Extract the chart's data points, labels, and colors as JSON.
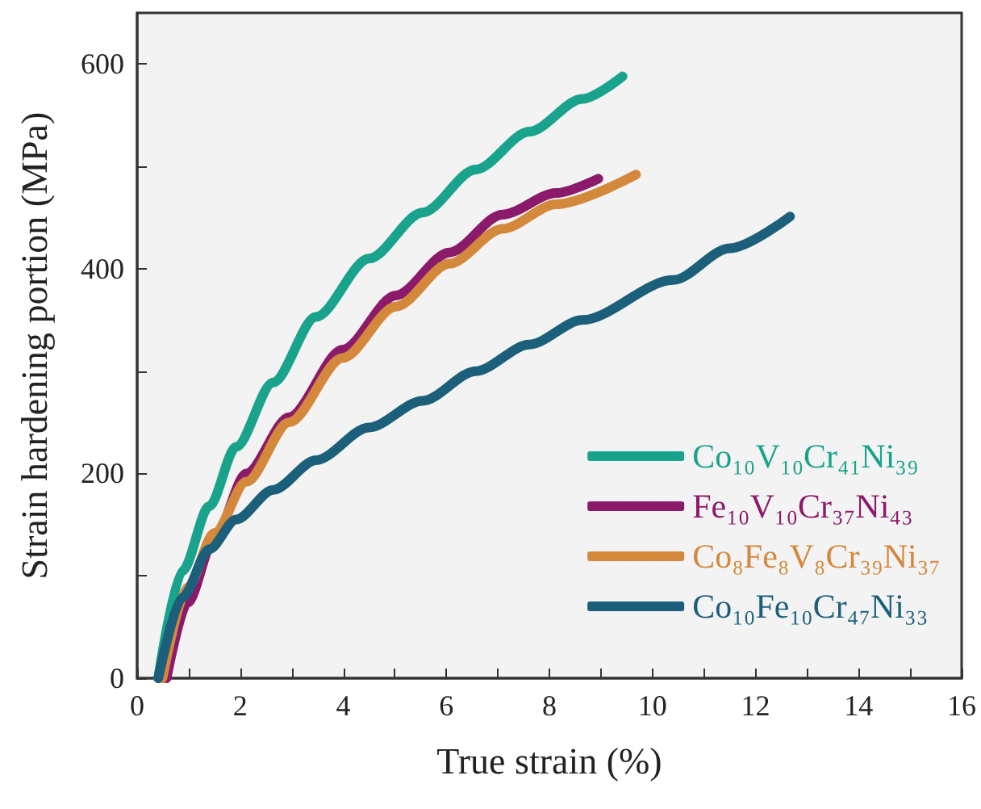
{
  "chart_data": {
    "type": "line",
    "xlabel": "True strain (%)",
    "ylabel": "Strain hardening portion (MPa)",
    "xlim": [
      0,
      16
    ],
    "xticks": [
      0,
      {
        "value": 1,
        "label": null
      },
      2,
      {
        "value": 3,
        "label": null
      },
      4,
      {
        "value": 5,
        "label": null
      },
      6,
      {
        "value": 7,
        "label": null
      },
      8,
      {
        "value": 9,
        "label": null
      },
      10,
      {
        "value": 11,
        "label": null
      },
      12,
      {
        "value": 13,
        "label": null
      },
      14,
      {
        "value": 15,
        "label": null
      },
      16
    ],
    "ylim": [
      0,
      650
    ],
    "yticks": [
      0,
      {
        "value": 100,
        "label": null
      },
      200,
      {
        "value": 300,
        "label": null
      },
      400,
      {
        "value": 500,
        "label": null
      },
      600
    ],
    "grid": false,
    "legend": "bottom right",
    "marker": "none",
    "line_style": "solid",
    "series": [
      {
        "name": "Co₁₀V₁₀Cr₄₁Ni₃₉",
        "color": "#1aa38c",
        "x": [
          0.41,
          0.88,
          1.4,
          1.92,
          2.64,
          3.47,
          4.5,
          5.54,
          6.57,
          7.61,
          8.64,
          9.42
        ],
        "values": [
          0,
          105,
          168,
          226,
          289,
          353,
          410,
          455,
          497,
          534,
          566,
          588
        ]
      },
      {
        "name": "Fe₁₀V₁₀Cr₃₇Ni₄₃",
        "color": "#8b1a6b",
        "x": [
          0.57,
          0.98,
          1.5,
          2.12,
          2.95,
          3.99,
          5.02,
          6.06,
          7.09,
          8.13,
          8.95
        ],
        "values": [
          0,
          74,
          137,
          200,
          255,
          321,
          374,
          416,
          453,
          474,
          488
        ]
      },
      {
        "name": "Co₈Fe₈V₈Cr₃₉Ni₃₇",
        "color": "#d4883c",
        "x": [
          0.49,
          0.98,
          1.5,
          2.12,
          2.95,
          3.99,
          5.02,
          6.06,
          7.09,
          8.13,
          9.68
        ],
        "values": [
          0,
          89,
          142,
          192,
          250,
          313,
          363,
          405,
          439,
          463,
          492
        ]
      },
      {
        "name": "Co₁₀Fe₁₀Cr₄₇Ni₃₃",
        "color": "#1b5f7a",
        "x": [
          0.41,
          0.88,
          1.4,
          1.92,
          2.64,
          3.47,
          4.5,
          5.54,
          6.57,
          7.61,
          8.64,
          10.4,
          11.5,
          12.67
        ],
        "values": [
          0,
          79,
          126,
          155,
          184,
          213,
          245,
          271,
          300,
          326,
          350,
          389,
          420,
          451
        ]
      }
    ]
  }
}
